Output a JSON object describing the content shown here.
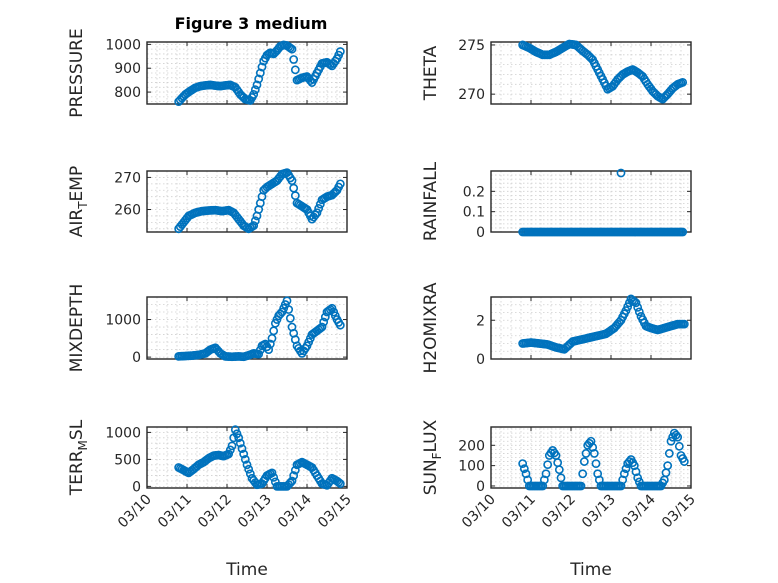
{
  "chart_data": [
    {
      "type": "scatter",
      "title": "Figure 3 medium",
      "ylabel": "PRESSURE",
      "xlim": [
        "03/10",
        "03/15"
      ],
      "ylim": [
        750,
        1010
      ],
      "yticks": [
        800,
        900,
        1000
      ],
      "show_xticks": false,
      "x": [
        "03/10 19:00",
        "03/10 21:00",
        "03/10 23:00",
        "03/11 02:00",
        "03/11 05:00",
        "03/11 08:00",
        "03/11 11:00",
        "03/11 14:00",
        "03/11 17:00",
        "03/11 20:00",
        "03/11 23:00",
        "03/12 02:00",
        "03/12 05:00",
        "03/12 08:00",
        "03/12 11:00",
        "03/12 14:00",
        "03/12 16:00",
        "03/12 18:00",
        "03/12 20:00",
        "03/12 22:00",
        "03/13 00:00",
        "03/13 02:00",
        "03/13 04:00",
        "03/13 06:00",
        "03/13 08:00",
        "03/13 10:00",
        "03/13 12:00",
        "03/13 15:00",
        "03/13 18:00",
        "03/13 21:00",
        "03/14 00:00",
        "03/14 03:00",
        "03/14 06:00",
        "03/14 09:00",
        "03/14 12:00",
        "03/14 15:00",
        "03/14 18:00",
        "03/14 20:00"
      ],
      "y": [
        760,
        775,
        790,
        805,
        818,
        825,
        828,
        830,
        827,
        825,
        828,
        830,
        820,
        790,
        770,
        765,
        790,
        830,
        880,
        930,
        955,
        965,
        960,
        975,
        992,
        998,
        995,
        980,
        850,
        860,
        865,
        840,
        880,
        920,
        925,
        910,
        940,
        970
      ]
    },
    {
      "type": "scatter",
      "ylabel": "THETA",
      "xlim": [
        "03/10",
        "03/15"
      ],
      "ylim": [
        269,
        275.3
      ],
      "yticks": [
        270,
        275
      ],
      "show_xticks": false,
      "x": [
        "03/10 19:00",
        "03/10 23:00",
        "03/11 03:00",
        "03/11 07:00",
        "03/11 11:00",
        "03/11 15:00",
        "03/11 19:00",
        "03/11 23:00",
        "03/12 03:00",
        "03/12 07:00",
        "03/12 10:00",
        "03/12 13:00",
        "03/12 16:00",
        "03/12 19:00",
        "03/12 22:00",
        "03/13 01:00",
        "03/13 04:00",
        "03/13 07:00",
        "03/13 10:00",
        "03/13 13:00",
        "03/13 16:00",
        "03/13 19:00",
        "03/13 22:00",
        "03/14 01:00",
        "03/14 04:00",
        "03/14 07:00",
        "03/14 10:00",
        "03/14 13:00",
        "03/14 16:00",
        "03/14 19:00"
      ],
      "y": [
        275,
        274.7,
        274.3,
        274,
        274,
        274.3,
        274.7,
        275.1,
        275,
        274.4,
        274,
        273.5,
        272.5,
        271.5,
        270.5,
        270.8,
        271.5,
        272,
        272.3,
        272.5,
        272.2,
        271.8,
        271,
        270.3,
        269.8,
        269.5,
        270,
        270.6,
        271,
        271.2
      ]
    },
    {
      "type": "scatter",
      "ylabel": "AIR_TEMP",
      "xlim": [
        "03/10",
        "03/15"
      ],
      "ylim": [
        253,
        272
      ],
      "yticks": [
        260,
        270
      ],
      "show_xticks": false,
      "x": [
        "03/10 19:00",
        "03/10 22:00",
        "03/11 01:00",
        "03/11 05:00",
        "03/11 09:00",
        "03/11 13:00",
        "03/11 17:00",
        "03/11 21:00",
        "03/12 01:00",
        "03/12 04:00",
        "03/12 07:00",
        "03/12 10:00",
        "03/12 13:00",
        "03/12 16:00",
        "03/12 18:00",
        "03/12 20:00",
        "03/12 22:00",
        "03/13 00:00",
        "03/13 03:00",
        "03/13 06:00",
        "03/13 09:00",
        "03/13 12:00",
        "03/13 15:00",
        "03/13 18:00",
        "03/13 21:00",
        "03/14 00:00",
        "03/14 03:00",
        "03/14 06:00",
        "03/14 09:00",
        "03/14 12:00",
        "03/14 15:00",
        "03/14 18:00",
        "03/14 20:00"
      ],
      "y": [
        254,
        256,
        258,
        259,
        259.5,
        259.7,
        259.8,
        259.5,
        259.8,
        259,
        257,
        255,
        254,
        255,
        258,
        262,
        266,
        267,
        268,
        269,
        271,
        271.5,
        269,
        262,
        261,
        260,
        257,
        259,
        263,
        264,
        264.5,
        266,
        268
      ]
    },
    {
      "type": "scatter",
      "ylabel": "RAINFALL",
      "xlim": [
        "03/10",
        "03/15"
      ],
      "ylim": [
        0,
        0.3
      ],
      "yticks": [
        0,
        0.1,
        0.2
      ],
      "yticklabels": [
        "0",
        "0.1",
        "0.2"
      ],
      "show_xticks": false,
      "x": [
        "03/10 19:00",
        "03/10 23:00",
        "03/11 03:00",
        "03/11 07:00",
        "03/11 11:00",
        "03/11 15:00",
        "03/11 19:00",
        "03/11 23:00",
        "03/12 03:00",
        "03/12 07:00",
        "03/12 11:00",
        "03/12 15:00",
        "03/12 19:00",
        "03/12 23:00",
        "03/13 03:00",
        "03/13 07:00",
        "03/13 11:00",
        "03/13 15:00",
        "03/13 19:00",
        "03/13 23:00",
        "03/14 03:00",
        "03/14 07:00",
        "03/14 11:00",
        "03/14 15:00",
        "03/14 19:00",
        "03/13 06:00"
      ],
      "y": [
        0,
        0,
        0,
        0,
        0,
        0,
        0,
        0,
        0,
        0,
        0,
        0,
        0,
        0,
        0,
        0,
        0,
        0,
        0,
        0,
        0,
        0,
        0,
        0,
        0,
        0.29
      ]
    },
    {
      "type": "scatter",
      "ylabel": "MIXDEPTH",
      "xlim": [
        "03/10",
        "03/15"
      ],
      "ylim": [
        -50,
        1600
      ],
      "yticks": [
        0,
        1000
      ],
      "show_xticks": false,
      "x": [
        "03/10 19:00",
        "03/10 23:00",
        "03/11 03:00",
        "03/11 07:00",
        "03/11 11:00",
        "03/11 14:00",
        "03/11 17:00",
        "03/11 20:00",
        "03/11 23:00",
        "03/12 03:00",
        "03/12 07:00",
        "03/12 10:00",
        "03/12 13:00",
        "03/12 16:00",
        "03/12 19:00",
        "03/12 21:00",
        "03/12 23:00",
        "03/13 01:00",
        "03/13 03:00",
        "03/13 05:00",
        "03/13 07:00",
        "03/13 09:00",
        "03/13 12:00",
        "03/13 15:00",
        "03/13 18:00",
        "03/13 21:00",
        "03/14 00:00",
        "03/14 03:00",
        "03/14 06:00",
        "03/14 09:00",
        "03/14 12:00",
        "03/14 15:00",
        "03/14 18:00",
        "03/14 20:00"
      ],
      "y": [
        20,
        30,
        40,
        60,
        100,
        200,
        250,
        100,
        20,
        10,
        20,
        10,
        50,
        100,
        80,
        300,
        350,
        200,
        500,
        900,
        1100,
        1200,
        1500,
        800,
        300,
        100,
        300,
        600,
        700,
        800,
        1200,
        1300,
        1000,
        850
      ]
    },
    {
      "type": "scatter",
      "ylabel": "H2OMIXRA",
      "xlim": [
        "03/10",
        "03/15"
      ],
      "ylim": [
        0,
        3.2
      ],
      "yticks": [
        0,
        2
      ],
      "show_xticks": false,
      "x": [
        "03/10 19:00",
        "03/11 00:00",
        "03/11 05:00",
        "03/11 10:00",
        "03/11 15:00",
        "03/11 20:00",
        "03/12 01:00",
        "03/12 06:00",
        "03/12 11:00",
        "03/12 16:00",
        "03/12 21:00",
        "03/13 02:00",
        "03/13 06:00",
        "03/13 09:00",
        "03/13 12:00",
        "03/13 15:00",
        "03/13 18:00",
        "03/13 21:00",
        "03/14 00:00",
        "03/14 04:00",
        "03/14 08:00",
        "03/14 12:00",
        "03/14 16:00",
        "03/14 20:00"
      ],
      "y": [
        0.8,
        0.85,
        0.8,
        0.75,
        0.6,
        0.5,
        0.9,
        1.0,
        1.1,
        1.2,
        1.3,
        1.6,
        2.0,
        2.5,
        3.1,
        2.9,
        2.2,
        1.7,
        1.6,
        1.5,
        1.6,
        1.7,
        1.8,
        1.8
      ]
    },
    {
      "type": "scatter",
      "ylabel": "TERR_MSL",
      "xlabel": "Time",
      "xlim": [
        "03/10",
        "03/15"
      ],
      "ylim": [
        -30,
        1100
      ],
      "yticks": [
        0,
        500,
        1000
      ],
      "show_xticks": true,
      "xticklabels": [
        "03/10",
        "03/11",
        "03/12",
        "03/13",
        "03/14",
        "03/15"
      ],
      "x": [
        "03/10 19:00",
        "03/10 22:00",
        "03/11 01:00",
        "03/11 04:00",
        "03/11 07:00",
        "03/11 10:00",
        "03/11 13:00",
        "03/11 16:00",
        "03/11 19:00",
        "03/11 22:00",
        "03/12 01:00",
        "03/12 03:00",
        "03/12 05:00",
        "03/12 07:00",
        "03/12 09:00",
        "03/12 12:00",
        "03/12 15:00",
        "03/12 18:00",
        "03/12 21:00",
        "03/13 00:00",
        "03/13 03:00",
        "03/13 06:00",
        "03/13 09:00",
        "03/13 12:00",
        "03/13 15:00",
        "03/13 18:00",
        "03/13 21:00",
        "03/14 00:00",
        "03/14 03:00",
        "03/14 06:00",
        "03/14 09:00",
        "03/14 12:00",
        "03/14 15:00",
        "03/14 18:00",
        "03/14 20:00"
      ],
      "y": [
        350,
        300,
        250,
        320,
        400,
        450,
        520,
        570,
        580,
        560,
        600,
        750,
        1050,
        900,
        700,
        400,
        150,
        30,
        50,
        200,
        250,
        0,
        0,
        0,
        100,
        400,
        450,
        400,
        350,
        200,
        50,
        20,
        150,
        100,
        50
      ]
    },
    {
      "type": "scatter",
      "ylabel": "SUN_FLUX",
      "xlabel": "Time",
      "xlim": [
        "03/10",
        "03/15"
      ],
      "ylim": [
        -10,
        290
      ],
      "yticks": [
        0,
        100,
        200
      ],
      "show_xticks": true,
      "xticklabels": [
        "03/10",
        "03/11",
        "03/12",
        "03/13",
        "03/14",
        "03/15"
      ],
      "x": [
        "03/10 19:00",
        "03/10 21:00",
        "03/10 23:00",
        "03/11 01:00",
        "03/11 04:00",
        "03/11 07:00",
        "03/11 09:00",
        "03/11 11:00",
        "03/11 13:00",
        "03/11 15:00",
        "03/11 17:00",
        "03/11 19:00",
        "03/11 21:00",
        "03/12 00:00",
        "03/12 03:00",
        "03/12 06:00",
        "03/12 08:00",
        "03/12 10:00",
        "03/12 12:00",
        "03/12 14:00",
        "03/12 16:00",
        "03/12 18:00",
        "03/12 21:00",
        "03/13 00:00",
        "03/13 03:00",
        "03/13 06:00",
        "03/13 08:00",
        "03/13 10:00",
        "03/13 12:00",
        "03/13 14:00",
        "03/13 16:00",
        "03/13 18:00",
        "03/13 21:00",
        "03/14 00:00",
        "03/14 03:00",
        "03/14 06:00",
        "03/14 08:00",
        "03/14 10:00",
        "03/14 12:00",
        "03/14 14:00",
        "03/14 16:00",
        "03/14 18:00",
        "03/14 20:00"
      ],
      "y": [
        110,
        60,
        0,
        0,
        0,
        0,
        60,
        150,
        175,
        150,
        80,
        0,
        0,
        0,
        0,
        0,
        120,
        200,
        220,
        160,
        60,
        0,
        0,
        0,
        0,
        0,
        60,
        110,
        130,
        100,
        40,
        0,
        0,
        0,
        0,
        0,
        30,
        100,
        220,
        260,
        240,
        150,
        120
      ]
    }
  ]
}
